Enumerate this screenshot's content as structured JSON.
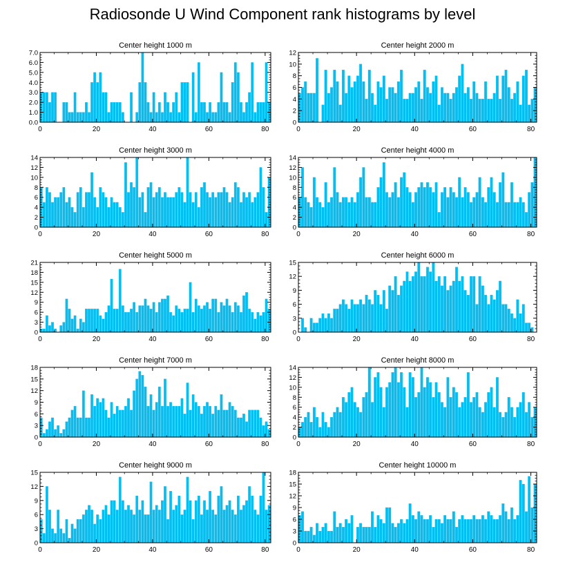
{
  "figure_title": "Radiosonde U Wind Component rank histograms by level",
  "colors": {
    "bar": "#00BFF3",
    "bar_edge": "#33BBE6",
    "axis": "#000000"
  },
  "chart_data": [
    {
      "type": "bar",
      "title": "Center height 1000 m",
      "xlim": [
        0,
        82
      ],
      "ylim": [
        0,
        7
      ],
      "yticks": [
        0,
        1,
        2,
        3,
        4,
        5,
        6,
        7
      ],
      "ytick_labels": [
        "0.0",
        "1.0",
        "2.0",
        "3.0",
        "4.0",
        "5.0",
        "6.0",
        "7.0"
      ],
      "xticks": [
        0,
        20,
        40,
        60,
        80
      ],
      "xtick_labels": [
        "0",
        "20",
        "40",
        "60",
        "80"
      ],
      "xlabel": "",
      "ylabel": "",
      "values": [
        3,
        3,
        3,
        2,
        3,
        3,
        0,
        0,
        2,
        2,
        1,
        1,
        3,
        1,
        1,
        1,
        2,
        1,
        4,
        5,
        4,
        5,
        3,
        3,
        1,
        2,
        2,
        2,
        2,
        1,
        0,
        0,
        3,
        0,
        1,
        4,
        7,
        4,
        2,
        1,
        3,
        1,
        2,
        1,
        3,
        2,
        1,
        2,
        3,
        1,
        4,
        4,
        4,
        0,
        5,
        1,
        6,
        2,
        2,
        1,
        2,
        1,
        1,
        2,
        5,
        2,
        2,
        1,
        4,
        6,
        5,
        2,
        1,
        2,
        3,
        6,
        1,
        2,
        2,
        2,
        6,
        2
      ]
    },
    {
      "type": "bar",
      "title": "Center height 2000 m",
      "xlim": [
        0,
        82
      ],
      "ylim": [
        0,
        12
      ],
      "yticks": [
        0,
        2,
        4,
        6,
        8,
        10,
        12
      ],
      "ytick_labels": [
        "0",
        "2",
        "4",
        "6",
        "8",
        "10",
        "12"
      ],
      "xticks": [
        0,
        20,
        40,
        60,
        80
      ],
      "xtick_labels": [
        "0",
        "20",
        "40",
        "60",
        "80"
      ],
      "xlabel": "",
      "ylabel": "",
      "values": [
        5,
        6,
        7,
        5,
        5,
        5,
        11,
        0,
        3,
        9,
        5,
        6,
        9,
        7,
        3,
        9,
        5,
        8,
        6,
        7,
        8,
        10,
        7,
        4,
        9,
        5,
        3,
        7,
        6,
        8,
        4,
        6,
        6,
        5,
        7,
        9,
        4,
        4,
        5,
        5,
        6,
        7,
        4,
        9,
        6,
        5,
        7,
        8,
        3,
        6,
        5,
        5,
        4,
        5,
        6,
        8,
        10,
        5,
        6,
        4,
        7,
        5,
        4,
        4,
        7,
        4,
        4,
        5,
        8,
        4,
        8,
        9,
        6,
        4,
        5,
        7,
        3,
        8,
        9,
        3,
        4,
        6
      ]
    },
    {
      "type": "bar",
      "title": "Center height 3000 m",
      "xlim": [
        0,
        82
      ],
      "ylim": [
        0,
        14
      ],
      "yticks": [
        0,
        2,
        4,
        6,
        8,
        10,
        12,
        14
      ],
      "ytick_labels": [
        "0",
        "2",
        "4",
        "6",
        "8",
        "10",
        "12",
        "14"
      ],
      "xticks": [
        0,
        20,
        40,
        60,
        80
      ],
      "xtick_labels": [
        "0",
        "20",
        "40",
        "60",
        "80"
      ],
      "xlabel": "",
      "ylabel": "",
      "values": [
        8,
        5,
        8,
        7,
        5,
        6,
        6,
        7,
        8,
        5,
        6,
        4,
        3,
        7,
        8,
        4,
        7,
        7,
        11,
        6,
        4,
        8,
        7,
        6,
        4,
        6,
        5,
        5,
        4,
        3,
        13,
        7,
        9,
        8,
        14,
        6,
        7,
        3,
        8,
        9,
        6,
        7,
        8,
        6,
        7,
        6,
        6,
        6,
        7,
        8,
        7,
        5,
        14,
        7,
        5,
        7,
        4,
        8,
        9,
        7,
        6,
        7,
        6,
        7,
        7,
        8,
        7,
        5,
        6,
        9,
        8,
        5,
        7,
        6,
        7,
        5,
        6,
        7,
        12,
        8,
        3,
        10
      ]
    },
    {
      "type": "bar",
      "title": "Center height 4000 m",
      "xlim": [
        0,
        82
      ],
      "ylim": [
        0,
        14
      ],
      "yticks": [
        0,
        2,
        4,
        6,
        8,
        10,
        12,
        14
      ],
      "ytick_labels": [
        "0",
        "2",
        "4",
        "6",
        "8",
        "10",
        "12",
        "14"
      ],
      "xticks": [
        0,
        20,
        40,
        60,
        80
      ],
      "xtick_labels": [
        "0",
        "20",
        "40",
        "60",
        "80"
      ],
      "xlabel": "",
      "ylabel": "",
      "values": [
        6,
        12,
        6,
        5,
        4,
        10,
        6,
        5,
        4,
        9,
        5,
        6,
        12,
        7,
        5,
        6,
        6,
        5,
        6,
        5,
        7,
        10,
        12,
        6,
        6,
        5,
        5,
        8,
        10,
        13,
        7,
        6,
        7,
        9,
        6,
        10,
        11,
        8,
        7,
        5,
        7,
        8,
        9,
        8,
        9,
        8,
        7,
        9,
        3,
        7,
        8,
        6,
        8,
        7,
        6,
        10,
        6,
        8,
        7,
        5,
        6,
        7,
        10,
        6,
        5,
        8,
        10,
        7,
        5,
        9,
        11,
        5,
        5,
        9,
        5,
        5,
        6,
        5,
        3,
        7,
        9,
        14
      ]
    },
    {
      "type": "bar",
      "title": "Center height 5000 m",
      "xlim": [
        0,
        82
      ],
      "ylim": [
        0,
        21
      ],
      "yticks": [
        0,
        3,
        6,
        9,
        12,
        15,
        18,
        21
      ],
      "ytick_labels": [
        "0",
        "3",
        "6",
        "9",
        "12",
        "15",
        "18",
        "21"
      ],
      "xticks": [
        0,
        20,
        40,
        60,
        80
      ],
      "xtick_labels": [
        "0",
        "20",
        "40",
        "60",
        "80"
      ],
      "xlabel": "",
      "ylabel": "",
      "values": [
        1,
        1,
        5,
        2,
        3,
        1,
        0,
        2,
        3,
        10,
        7,
        4,
        5,
        1,
        4,
        3,
        7,
        7,
        7,
        7,
        7,
        5,
        4,
        6,
        8,
        16,
        7,
        7,
        19,
        8,
        6,
        6,
        7,
        9,
        6,
        8,
        8,
        10,
        8,
        7,
        9,
        6,
        9,
        10,
        10,
        11,
        6,
        5,
        8,
        7,
        6,
        7,
        7,
        15,
        6,
        10,
        8,
        7,
        8,
        9,
        7,
        10,
        10,
        6,
        9,
        8,
        10,
        8,
        6,
        9,
        8,
        6,
        11,
        12,
        7,
        6,
        4,
        6,
        5,
        6,
        10,
        7
      ]
    },
    {
      "type": "bar",
      "title": "Center height 6000 m",
      "xlim": [
        0,
        82
      ],
      "ylim": [
        0,
        15
      ],
      "yticks": [
        0,
        3,
        6,
        9,
        12,
        15
      ],
      "ytick_labels": [
        "0",
        "3",
        "6",
        "9",
        "12",
        "15"
      ],
      "xticks": [
        0,
        20,
        40,
        60,
        80
      ],
      "xtick_labels": [
        "0",
        "20",
        "40",
        "60",
        "80"
      ],
      "xlabel": "",
      "ylabel": "",
      "values": [
        0,
        3,
        1,
        0,
        3,
        2,
        2,
        3,
        4,
        3,
        4,
        3,
        5,
        5,
        6,
        7,
        6,
        5,
        7,
        6,
        6,
        7,
        6,
        8,
        7,
        6,
        9,
        8,
        6,
        9,
        5,
        10,
        9,
        12,
        8,
        10,
        11,
        13,
        11,
        12,
        13,
        15,
        12,
        12,
        14,
        13,
        15,
        11,
        12,
        10,
        12,
        9,
        10,
        11,
        14,
        11,
        12,
        9,
        8,
        12,
        12,
        6,
        12,
        10,
        8,
        6,
        8,
        7,
        9,
        11,
        6,
        6,
        5,
        4,
        3,
        7,
        4,
        6,
        2,
        2,
        1,
        0
      ]
    },
    {
      "type": "bar",
      "title": "Center height 7000 m",
      "xlim": [
        0,
        82
      ],
      "ylim": [
        0,
        18
      ],
      "yticks": [
        0,
        3,
        6,
        9,
        12,
        15,
        18
      ],
      "ytick_labels": [
        "0",
        "3",
        "6",
        "9",
        "12",
        "15",
        "18"
      ],
      "xticks": [
        0,
        20,
        40,
        60,
        80
      ],
      "xtick_labels": [
        "0",
        "20",
        "40",
        "60",
        "80"
      ],
      "xlabel": "",
      "ylabel": "",
      "values": [
        5,
        1,
        2,
        4,
        5,
        2,
        3,
        1,
        2,
        4,
        5,
        7,
        8,
        5,
        5,
        12,
        5,
        5,
        11,
        8,
        10,
        9,
        10,
        7,
        5,
        9,
        6,
        8,
        7,
        7,
        8,
        10,
        7,
        12,
        15,
        17,
        16,
        13,
        8,
        11,
        7,
        9,
        13,
        8,
        15,
        8,
        9,
        8,
        8,
        8,
        10,
        6,
        14,
        7,
        11,
        9,
        8,
        6,
        8,
        9,
        8,
        6,
        8,
        7,
        11,
        7,
        7,
        9,
        8,
        7,
        5,
        5,
        6,
        4,
        7,
        7,
        7,
        7,
        5,
        3,
        4,
        2
      ]
    },
    {
      "type": "bar",
      "title": "Center height 8000 m",
      "xlim": [
        0,
        82
      ],
      "ylim": [
        0,
        14
      ],
      "yticks": [
        0,
        2,
        4,
        6,
        8,
        10,
        12,
        14
      ],
      "ytick_labels": [
        "0",
        "2",
        "4",
        "6",
        "8",
        "10",
        "12",
        "14"
      ],
      "xticks": [
        0,
        20,
        40,
        60,
        80
      ],
      "xtick_labels": [
        "0",
        "20",
        "40",
        "60",
        "80"
      ],
      "xlabel": "",
      "ylabel": "",
      "values": [
        2,
        3,
        4,
        5,
        3,
        6,
        4,
        2,
        5,
        3,
        2,
        4,
        5,
        6,
        5,
        8,
        7,
        9,
        10,
        7,
        6,
        5,
        8,
        9,
        14,
        7,
        12,
        13,
        10,
        6,
        10,
        11,
        13,
        14,
        11,
        13,
        10,
        6,
        13,
        12,
        8,
        9,
        14,
        10,
        12,
        11,
        8,
        11,
        9,
        7,
        6,
        12,
        8,
        10,
        9,
        6,
        7,
        8,
        13,
        7,
        8,
        9,
        6,
        5,
        7,
        9,
        10,
        6,
        12,
        5,
        4,
        5,
        8,
        6,
        4,
        6,
        7,
        9,
        5,
        7,
        4,
        6
      ]
    },
    {
      "type": "bar",
      "title": "Center height 9000 m",
      "xlim": [
        0,
        82
      ],
      "ylim": [
        0,
        15
      ],
      "yticks": [
        0,
        3,
        6,
        9,
        12,
        15
      ],
      "ytick_labels": [
        "0",
        "3",
        "6",
        "9",
        "12",
        "15"
      ],
      "xticks": [
        0,
        20,
        40,
        60,
        80
      ],
      "xtick_labels": [
        "0",
        "20",
        "40",
        "60",
        "80"
      ],
      "xlabel": "",
      "ylabel": "",
      "values": [
        5,
        2,
        12,
        7,
        3,
        2,
        7,
        3,
        2,
        5,
        1,
        4,
        3,
        5,
        5,
        6,
        7,
        8,
        7,
        4,
        6,
        5,
        7,
        8,
        6,
        9,
        9,
        7,
        14,
        9,
        7,
        8,
        7,
        6,
        10,
        7,
        9,
        6,
        6,
        13,
        7,
        8,
        7,
        9,
        12,
        5,
        11,
        7,
        8,
        10,
        6,
        7,
        14,
        9,
        5,
        9,
        10,
        6,
        9,
        7,
        11,
        7,
        6,
        10,
        12,
        7,
        8,
        9,
        7,
        6,
        10,
        7,
        8,
        9,
        12,
        10,
        7,
        6,
        10,
        15,
        7,
        8
      ]
    },
    {
      "type": "bar",
      "title": "Center height 10000 m",
      "xlim": [
        0,
        82
      ],
      "ylim": [
        0,
        18
      ],
      "yticks": [
        0,
        3,
        6,
        9,
        12,
        15,
        18
      ],
      "ytick_labels": [
        "0",
        "3",
        "6",
        "9",
        "12",
        "15",
        "18"
      ],
      "xticks": [
        0,
        20,
        40,
        60,
        80
      ],
      "xtick_labels": [
        "0",
        "20",
        "40",
        "60",
        "80"
      ],
      "xlabel": "",
      "ylabel": "",
      "values": [
        7,
        8,
        3,
        3,
        4,
        2,
        5,
        3,
        4,
        5,
        3,
        3,
        8,
        4,
        5,
        4,
        6,
        5,
        7,
        0,
        4,
        5,
        4,
        4,
        4,
        8,
        4,
        7,
        6,
        5,
        9,
        9,
        5,
        4,
        5,
        6,
        5,
        6,
        10,
        7,
        6,
        8,
        7,
        6,
        6,
        7,
        4,
        6,
        6,
        5,
        7,
        6,
        6,
        8,
        4,
        6,
        7,
        6,
        6,
        6,
        7,
        6,
        6,
        7,
        6,
        8,
        7,
        6,
        6,
        7,
        10,
        8,
        6,
        9,
        6,
        7,
        16,
        15,
        8,
        17,
        9,
        15
      ]
    }
  ]
}
